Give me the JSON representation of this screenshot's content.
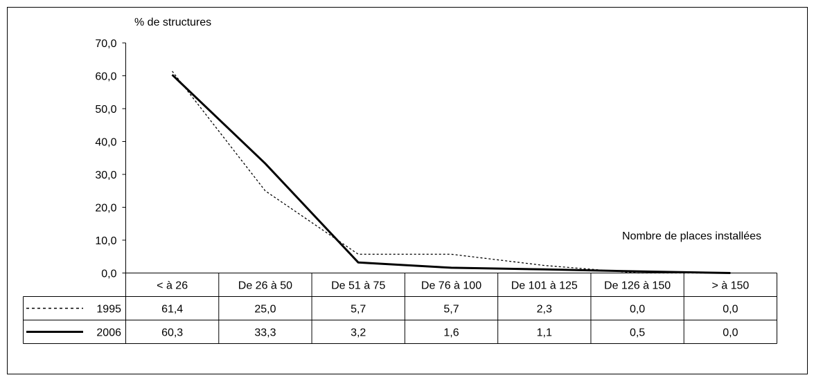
{
  "chart_data": {
    "type": "line",
    "ylabel": "% de structures",
    "xlabel": "Nombre de places installées",
    "ylim": [
      0,
      70
    ],
    "yticks": [
      "0,0",
      "10,0",
      "20,0",
      "30,0",
      "40,0",
      "50,0",
      "60,0",
      "70,0"
    ],
    "categories": [
      "< à  26",
      "De 26 à 50",
      "De 51 à 75",
      "De 76 à 100",
      "De 101 à 125",
      "De 126 à 150",
      "> à 150"
    ],
    "series": [
      {
        "name": "1995",
        "style": "dotted",
        "values": [
          61.4,
          25.0,
          5.7,
          5.7,
          2.3,
          0.0,
          0.0
        ],
        "labels": [
          "61,4",
          "25,0",
          "5,7",
          "5,7",
          "2,3",
          "0,0",
          "0,0"
        ]
      },
      {
        "name": "2006",
        "style": "solid",
        "values": [
          60.3,
          33.3,
          3.2,
          1.6,
          1.1,
          0.5,
          0.0
        ],
        "labels": [
          "60,3",
          "33,3",
          "3,2",
          "1,6",
          "1,1",
          "0,5",
          "0,0"
        ]
      }
    ],
    "legend": "data-table-left",
    "grid": false
  }
}
